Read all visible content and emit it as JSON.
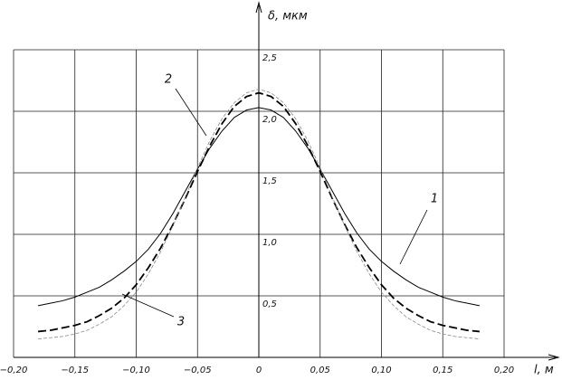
{
  "chart_data": {
    "type": "line",
    "x_label": "l, м",
    "y_label": "δ, мкм",
    "x": [
      -0.18,
      -0.17,
      -0.16,
      -0.15,
      -0.14,
      -0.13,
      -0.12,
      -0.11,
      -0.1,
      -0.09,
      -0.08,
      -0.07,
      -0.06,
      -0.05,
      -0.04,
      -0.03,
      -0.02,
      -0.01,
      0,
      0.01,
      0.02,
      0.03,
      0.04,
      0.05,
      0.06,
      0.07,
      0.08,
      0.09,
      0.1,
      0.11,
      0.12,
      0.13,
      0.14,
      0.15,
      0.16,
      0.17,
      0.18
    ],
    "series": [
      {
        "name": "1",
        "color": "#000000",
        "dashed": false,
        "values": [
          0.42,
          0.44,
          0.46,
          0.49,
          0.53,
          0.57,
          0.63,
          0.7,
          0.78,
          0.88,
          1.01,
          1.17,
          1.35,
          1.53,
          1.7,
          1.84,
          1.95,
          2.01,
          2.03,
          2.01,
          1.95,
          1.84,
          1.7,
          1.53,
          1.35,
          1.17,
          1.01,
          0.88,
          0.78,
          0.7,
          0.63,
          0.57,
          0.53,
          0.49,
          0.46,
          0.44,
          0.42
        ]
      },
      {
        "name": "2",
        "color": "#000000",
        "dashed": true,
        "values": [
          0.21,
          0.22,
          0.24,
          0.26,
          0.29,
          0.34,
          0.4,
          0.48,
          0.59,
          0.73,
          0.89,
          1.08,
          1.29,
          1.51,
          1.72,
          1.9,
          2.04,
          2.12,
          2.15,
          2.12,
          2.04,
          1.9,
          1.72,
          1.51,
          1.29,
          1.08,
          0.89,
          0.73,
          0.59,
          0.48,
          0.4,
          0.34,
          0.29,
          0.26,
          0.24,
          0.22,
          0.21
        ]
      },
      {
        "name": "3",
        "color": "#888888",
        "dashed": true,
        "values": [
          0.15,
          0.16,
          0.17,
          0.19,
          0.22,
          0.27,
          0.33,
          0.42,
          0.53,
          0.68,
          0.86,
          1.07,
          1.3,
          1.54,
          1.76,
          1.94,
          2.07,
          2.15,
          2.18,
          2.15,
          2.07,
          1.94,
          1.76,
          1.54,
          1.3,
          1.07,
          0.86,
          0.68,
          0.53,
          0.42,
          0.33,
          0.27,
          0.22,
          0.19,
          0.17,
          0.16,
          0.15
        ]
      }
    ],
    "xlim": [
      -0.2,
      0.2
    ],
    "ylim": [
      0,
      2.5
    ],
    "xticks": [
      {
        "value": -0.2,
        "label": "−0,20"
      },
      {
        "value": -0.15,
        "label": "−0,15"
      },
      {
        "value": -0.1,
        "label": "−0,10"
      },
      {
        "value": -0.05,
        "label": "−0,05"
      },
      0,
      {
        "value": 0.05,
        "label": "0,05"
      },
      {
        "value": 0.1,
        "label": "0,10"
      },
      {
        "value": 0.15,
        "label": "0,15"
      },
      {
        "value": 0.2,
        "label": "0,20"
      }
    ],
    "yticks": [
      {
        "value": 0.5,
        "label": "0,5"
      },
      {
        "value": 1.0,
        "label": "1,0"
      },
      {
        "value": 1.5,
        "label": "1,5"
      },
      {
        "value": 2.0,
        "label": "2,0"
      },
      {
        "value": 2.5,
        "label": "2,5"
      }
    ],
    "grid": true
  }
}
